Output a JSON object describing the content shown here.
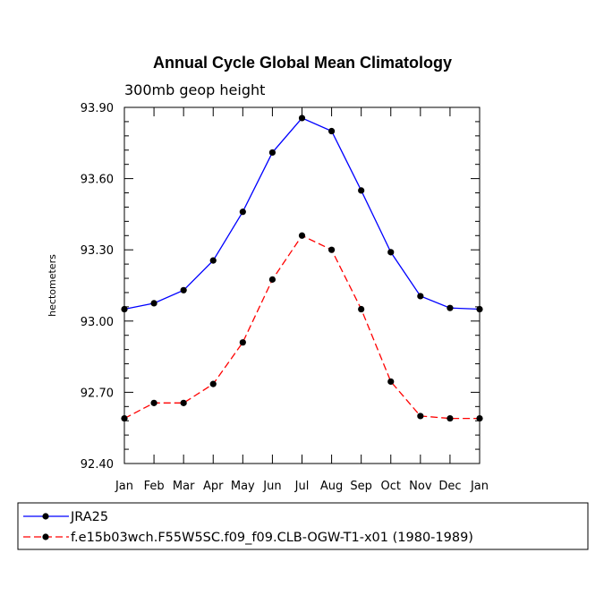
{
  "chart_data": {
    "type": "line",
    "title": "Annual Cycle Global Mean Climatology",
    "subtitle": "300mb geop height",
    "xlabel": "",
    "ylabel": "hectometers",
    "categories": [
      "Jan",
      "Feb",
      "Mar",
      "Apr",
      "May",
      "Jun",
      "Jul",
      "Aug",
      "Sep",
      "Oct",
      "Nov",
      "Dec",
      "Jan"
    ],
    "ylim": [
      92.4,
      93.9
    ],
    "yticks": [
      "92.40",
      "92.70",
      "93.00",
      "93.30",
      "93.60",
      "93.90"
    ],
    "grid": false,
    "legend_position": "bottom",
    "series": [
      {
        "name": "JRA25",
        "color": "#0000ff",
        "line_style": "solid",
        "values": [
          93.05,
          93.075,
          93.13,
          93.255,
          93.46,
          93.71,
          93.855,
          93.8,
          93.55,
          93.29,
          93.105,
          93.055,
          93.05
        ]
      },
      {
        "name": "f.e15b03wch.F55W5SC.f09_f09.CLB-OGW-T1-x01 (1980-1989)",
        "color": "#ff0000",
        "line_style": "dashed",
        "values": [
          92.59,
          92.655,
          92.655,
          92.735,
          92.91,
          93.175,
          93.36,
          93.3,
          93.05,
          92.745,
          92.6,
          92.59,
          92.59
        ]
      }
    ]
  }
}
